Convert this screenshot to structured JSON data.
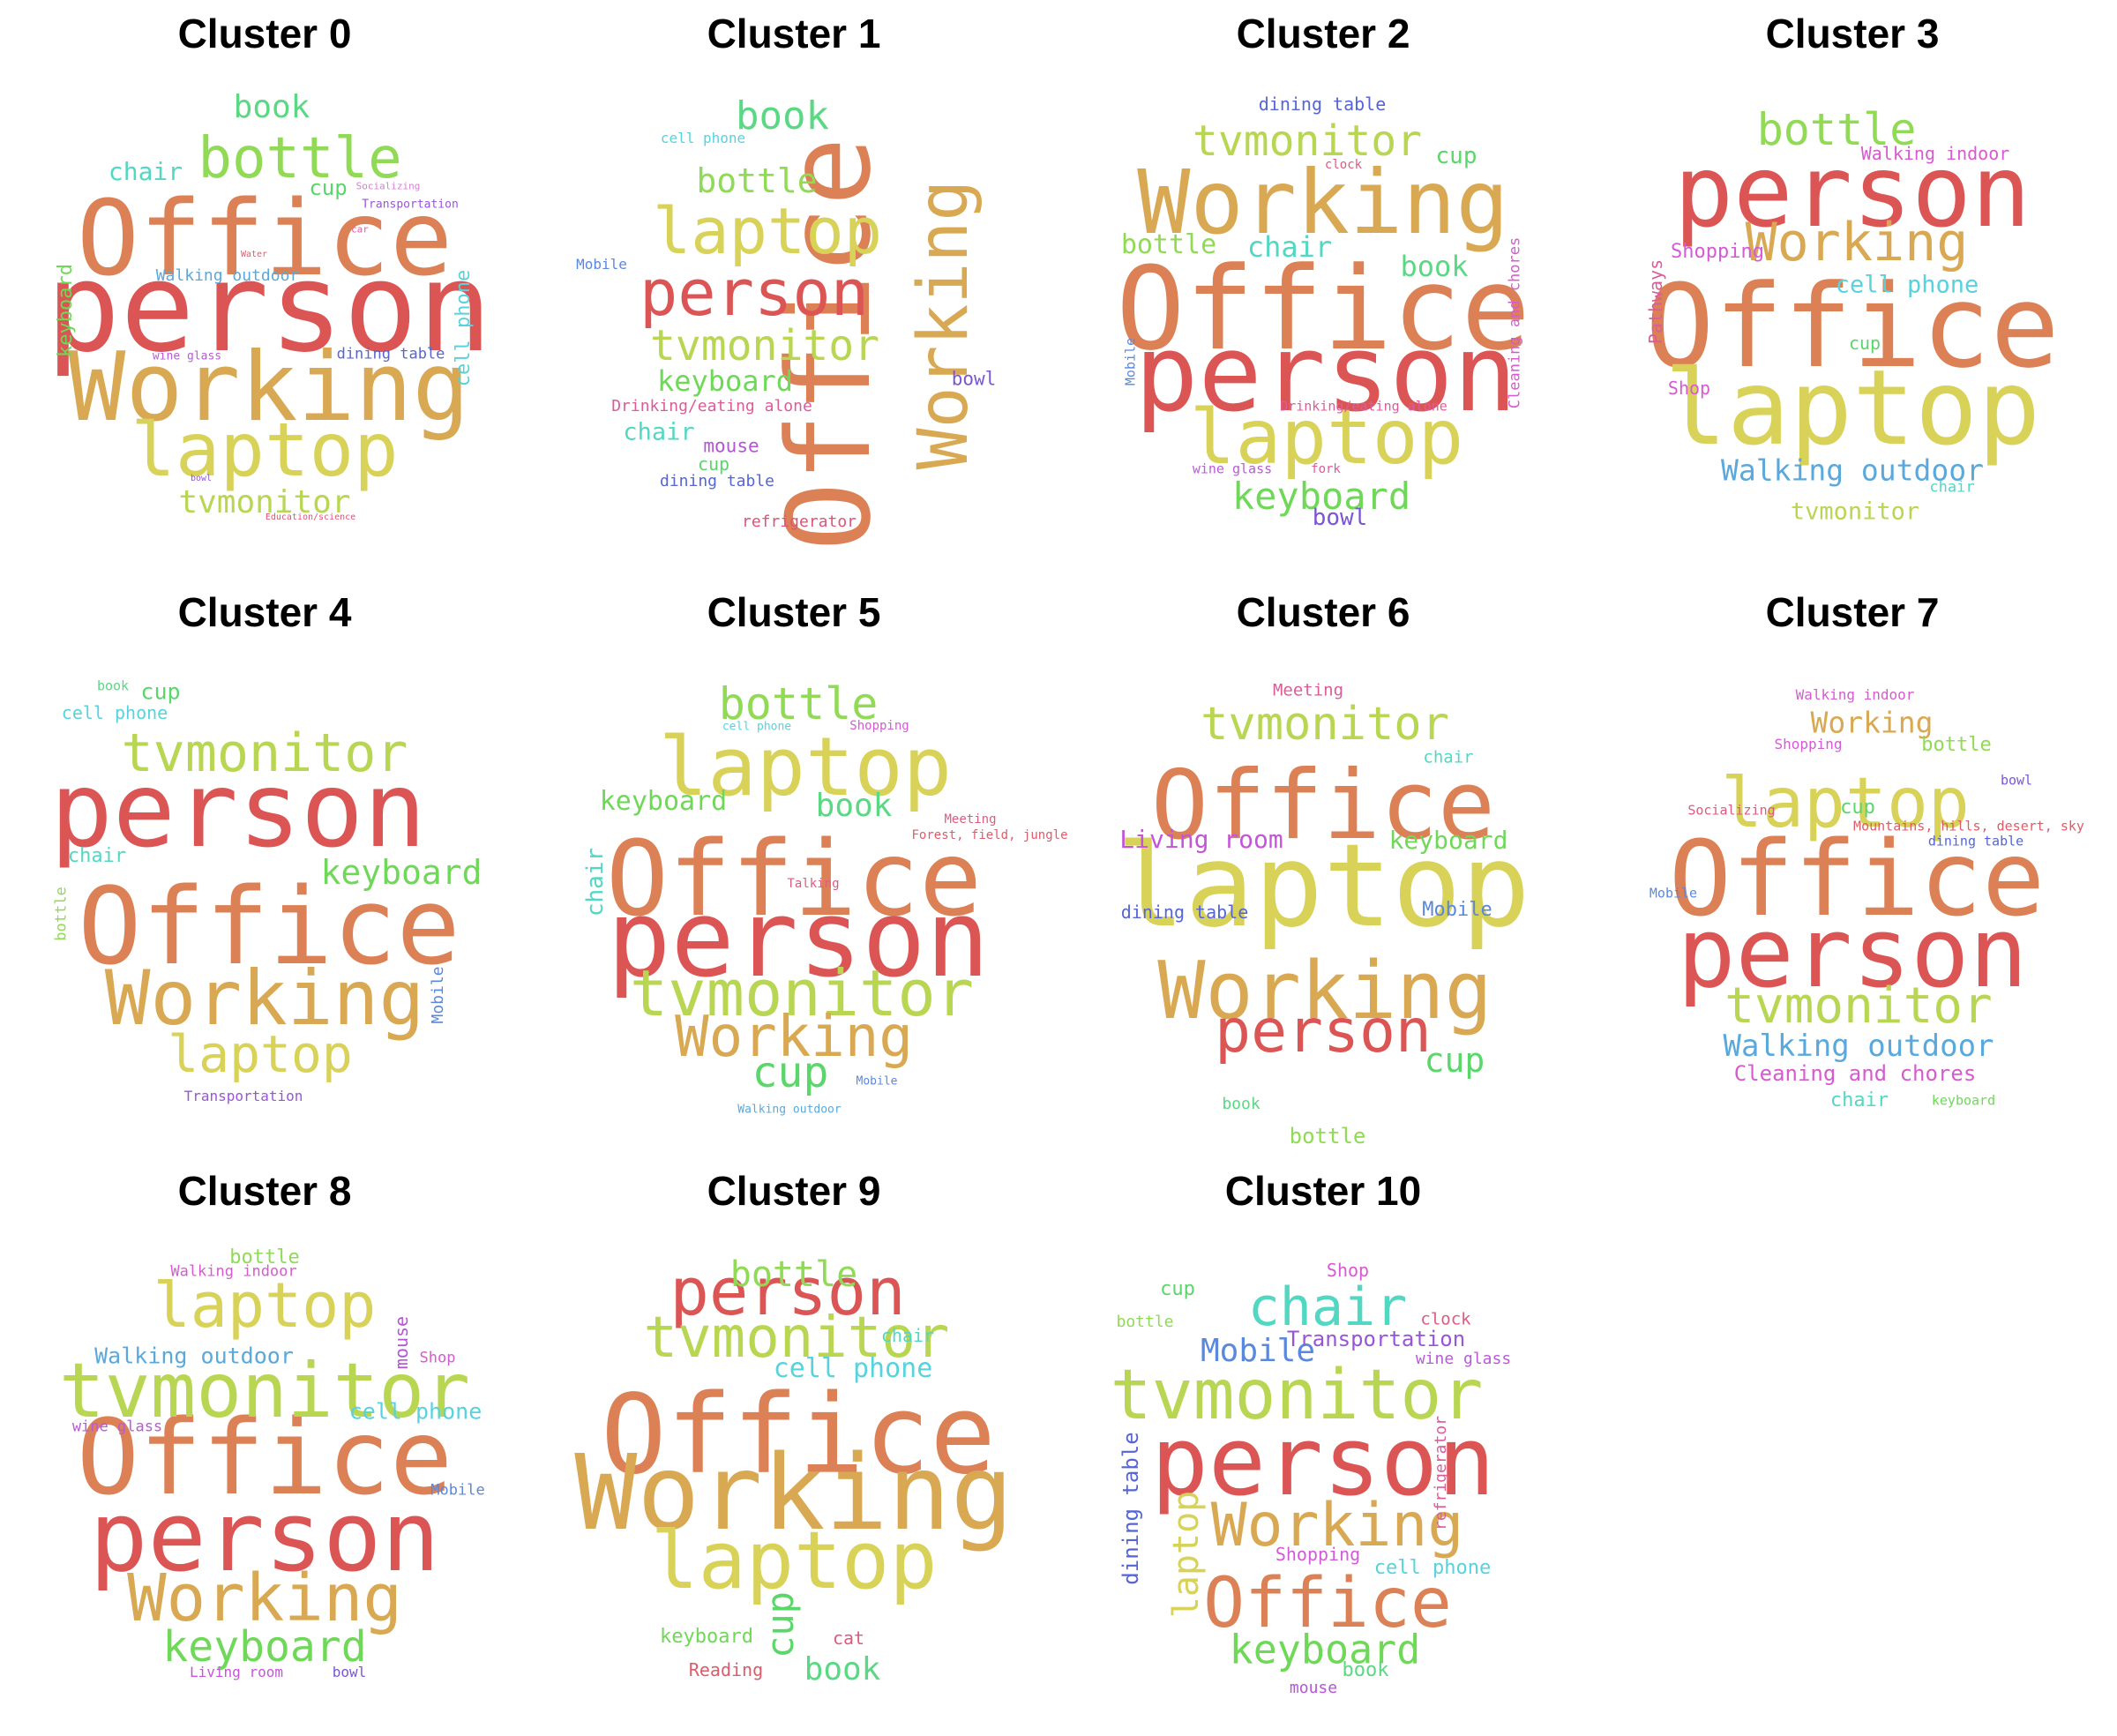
{
  "clusters": [
    {
      "title": "Cluster 0",
      "words": [
        {
          "text": "Office",
          "color": "#dc8055"
        },
        {
          "text": "person",
          "color": "#dc5555"
        },
        {
          "text": "Working",
          "color": "#d9a852"
        },
        {
          "text": "laptop",
          "color": "#d8d258"
        },
        {
          "text": "bottle",
          "color": "#90da55"
        },
        {
          "text": "book",
          "color": "#5ad883"
        },
        {
          "text": "chair",
          "color": "#52d7c3"
        },
        {
          "text": "cup",
          "color": "#5ad66a"
        },
        {
          "text": "tvmonitor",
          "color": "#b8d652"
        },
        {
          "text": "keyboard",
          "color": "#6fd858"
        },
        {
          "text": "cell phone",
          "color": "#58d2dd"
        },
        {
          "text": "Walking outdoor",
          "color": "#5aa8dc"
        },
        {
          "text": "dining table",
          "color": "#5565d8"
        },
        {
          "text": "Transportation",
          "color": "#9855d8"
        },
        {
          "text": "Socializing",
          "color": "#d87cd8"
        },
        {
          "text": "car",
          "color": "#dc5ca2"
        },
        {
          "text": "Water",
          "color": "#d86070"
        },
        {
          "text": "wine glass",
          "color": "#b95ad8"
        },
        {
          "text": "bowl",
          "color": "#9455d8"
        },
        {
          "text": "Education/science",
          "color": "#dc5577"
        }
      ]
    },
    {
      "title": "Cluster 1",
      "words": [
        {
          "text": "Office",
          "color": "#dc8055"
        },
        {
          "text": "Working",
          "color": "#d9a852"
        },
        {
          "text": "person",
          "color": "#dc5555"
        },
        {
          "text": "laptop",
          "color": "#d8d258"
        },
        {
          "text": "tvmonitor",
          "color": "#b8d652"
        },
        {
          "text": "book",
          "color": "#5ad883"
        },
        {
          "text": "bottle",
          "color": "#90da55"
        },
        {
          "text": "keyboard",
          "color": "#6fd858"
        },
        {
          "text": "chair",
          "color": "#52d7c3"
        },
        {
          "text": "cell phone",
          "color": "#58d2dd"
        },
        {
          "text": "Mobile",
          "color": "#5a88dc"
        },
        {
          "text": "Drinking/eating alone",
          "color": "#dc5c9a"
        },
        {
          "text": "mouse",
          "color": "#b455d8"
        },
        {
          "text": "cup",
          "color": "#5ad66a"
        },
        {
          "text": "dining table",
          "color": "#5565d8"
        },
        {
          "text": "bowl",
          "color": "#7a55d8"
        },
        {
          "text": "refrigerator",
          "color": "#dc5577"
        }
      ]
    },
    {
      "title": "Cluster 2",
      "words": [
        {
          "text": "Office",
          "color": "#dc8055"
        },
        {
          "text": "person",
          "color": "#dc5555"
        },
        {
          "text": "Working",
          "color": "#d9a852"
        },
        {
          "text": "laptop",
          "color": "#d8d258"
        },
        {
          "text": "tvmonitor",
          "color": "#b8d652"
        },
        {
          "text": "keyboard",
          "color": "#6fd858"
        },
        {
          "text": "dining table",
          "color": "#5565d8"
        },
        {
          "text": "cup",
          "color": "#5ad66a"
        },
        {
          "text": "clock",
          "color": "#dc5c7f"
        },
        {
          "text": "bottle",
          "color": "#90da55"
        },
        {
          "text": "chair",
          "color": "#52d7c3"
        },
        {
          "text": "book",
          "color": "#5ad883"
        },
        {
          "text": "Cleaning and chores",
          "color": "#d85ad0"
        },
        {
          "text": "Mobile",
          "color": "#5a88dc"
        },
        {
          "text": "Drinking/eating alone",
          "color": "#dc5c9a"
        },
        {
          "text": "wine glass",
          "color": "#b95ad8"
        },
        {
          "text": "fork",
          "color": "#dc5c9a"
        },
        {
          "text": "bowl",
          "color": "#7a55d8"
        }
      ]
    },
    {
      "title": "Cluster 3",
      "words": [
        {
          "text": "Office",
          "color": "#dc8055"
        },
        {
          "text": "person",
          "color": "#dc5555"
        },
        {
          "text": "laptop",
          "color": "#d8d258"
        },
        {
          "text": "Working",
          "color": "#d9a852"
        },
        {
          "text": "bottle",
          "color": "#90da55"
        },
        {
          "text": "Walking indoor",
          "color": "#d85ad0"
        },
        {
          "text": "Shopping",
          "color": "#d55ad8"
        },
        {
          "text": "cell phone",
          "color": "#58d2dd"
        },
        {
          "text": "Pathways",
          "color": "#dc5c9a"
        },
        {
          "text": "cup",
          "color": "#5ad66a"
        },
        {
          "text": "Shop",
          "color": "#d85ad0"
        },
        {
          "text": "Walking outdoor",
          "color": "#5aa8dc"
        },
        {
          "text": "chair",
          "color": "#52d7c3"
        },
        {
          "text": "tvmonitor",
          "color": "#b8d652"
        }
      ]
    },
    {
      "title": "Cluster 4",
      "words": [
        {
          "text": "person",
          "color": "#dc5555"
        },
        {
          "text": "Office",
          "color": "#dc8055"
        },
        {
          "text": "Working",
          "color": "#d9a852"
        },
        {
          "text": "tvmonitor",
          "color": "#b8d652"
        },
        {
          "text": "laptop",
          "color": "#d8d258"
        },
        {
          "text": "keyboard",
          "color": "#6fd858"
        },
        {
          "text": "book",
          "color": "#5ad883"
        },
        {
          "text": "cup",
          "color": "#5ad66a"
        },
        {
          "text": "cell phone",
          "color": "#58d2dd"
        },
        {
          "text": "chair",
          "color": "#52d7c3"
        },
        {
          "text": "bottle",
          "color": "#90da55"
        },
        {
          "text": "Mobile",
          "color": "#5a88dc"
        },
        {
          "text": "Transportation",
          "color": "#9855d8"
        }
      ]
    },
    {
      "title": "Cluster 5",
      "words": [
        {
          "text": "Office",
          "color": "#dc8055"
        },
        {
          "text": "person",
          "color": "#dc5555"
        },
        {
          "text": "laptop",
          "color": "#d8d258"
        },
        {
          "text": "tvmonitor",
          "color": "#b8d652"
        },
        {
          "text": "Working",
          "color": "#d9a852"
        },
        {
          "text": "bottle",
          "color": "#90da55"
        },
        {
          "text": "book",
          "color": "#5ad883"
        },
        {
          "text": "keyboard",
          "color": "#6fd858"
        },
        {
          "text": "cup",
          "color": "#5ad66a"
        },
        {
          "text": "chair",
          "color": "#52d7c3"
        },
        {
          "text": "cell phone",
          "color": "#58d2dd"
        },
        {
          "text": "Shopping",
          "color": "#d55ad8"
        },
        {
          "text": "Meeting",
          "color": "#dc5c7f"
        },
        {
          "text": "Forest, field, jungle",
          "color": "#dc5c6a"
        },
        {
          "text": "Talking",
          "color": "#dc5c7f"
        },
        {
          "text": "Mobile",
          "color": "#5a88dc"
        },
        {
          "text": "Walking outdoor",
          "color": "#5aa8dc"
        }
      ]
    },
    {
      "title": "Cluster 6",
      "words": [
        {
          "text": "laptop",
          "color": "#d8d258"
        },
        {
          "text": "Office",
          "color": "#dc8055"
        },
        {
          "text": "Working",
          "color": "#d9a852"
        },
        {
          "text": "person",
          "color": "#dc5555"
        },
        {
          "text": "tvmonitor",
          "color": "#b8d652"
        },
        {
          "text": "Living room",
          "color": "#c455d8"
        },
        {
          "text": "keyboard",
          "color": "#6fd858"
        },
        {
          "text": "Meeting",
          "color": "#dc5c9a"
        },
        {
          "text": "chair",
          "color": "#52d7c3"
        },
        {
          "text": "dining table",
          "color": "#5565d8"
        },
        {
          "text": "Mobile",
          "color": "#5a88dc"
        },
        {
          "text": "cup",
          "color": "#5ad66a"
        },
        {
          "text": "book",
          "color": "#5ad883"
        },
        {
          "text": "bottle",
          "color": "#90da55"
        }
      ]
    },
    {
      "title": "Cluster 7",
      "words": [
        {
          "text": "Office",
          "color": "#dc8055"
        },
        {
          "text": "person",
          "color": "#dc5555"
        },
        {
          "text": "laptop",
          "color": "#d8d258"
        },
        {
          "text": "tvmonitor",
          "color": "#b8d652"
        },
        {
          "text": "Walking outdoor",
          "color": "#5aa8dc"
        },
        {
          "text": "Cleaning and chores",
          "color": "#d85ad0"
        },
        {
          "text": "Working",
          "color": "#d9a852"
        },
        {
          "text": "Walking indoor",
          "color": "#d85ad0"
        },
        {
          "text": "Shopping",
          "color": "#d55ad8"
        },
        {
          "text": "bottle",
          "color": "#90da55"
        },
        {
          "text": "bowl",
          "color": "#7a55d8"
        },
        {
          "text": "Socializing",
          "color": "#dc5c7f"
        },
        {
          "text": "cup",
          "color": "#5ad66a"
        },
        {
          "text": "Mountains, hills, desert, sky",
          "color": "#dc5c6a"
        },
        {
          "text": "dining table",
          "color": "#5565d8"
        },
        {
          "text": "Mobile",
          "color": "#5a88dc"
        },
        {
          "text": "chair",
          "color": "#52d7c3"
        },
        {
          "text": "keyboard",
          "color": "#6fd858"
        }
      ]
    },
    {
      "title": "Cluster 8",
      "words": [
        {
          "text": "Office",
          "color": "#dc8055"
        },
        {
          "text": "person",
          "color": "#dc5555"
        },
        {
          "text": "tvmonitor",
          "color": "#b8d652"
        },
        {
          "text": "laptop",
          "color": "#d8d258"
        },
        {
          "text": "Working",
          "color": "#d9a852"
        },
        {
          "text": "keyboard",
          "color": "#6fd858"
        },
        {
          "text": "bottle",
          "color": "#90da55"
        },
        {
          "text": "Walking indoor",
          "color": "#d85ad0"
        },
        {
          "text": "Walking outdoor",
          "color": "#5aa8dc"
        },
        {
          "text": "mouse",
          "color": "#b455d8"
        },
        {
          "text": "Shop",
          "color": "#d85ad0"
        },
        {
          "text": "wine glass",
          "color": "#b95ad8"
        },
        {
          "text": "cell phone",
          "color": "#58d2dd"
        },
        {
          "text": "Mobile",
          "color": "#5a88dc"
        },
        {
          "text": "Living room",
          "color": "#c455d8"
        },
        {
          "text": "bowl",
          "color": "#7a55d8"
        }
      ]
    },
    {
      "title": "Cluster 9",
      "words": [
        {
          "text": "Office",
          "color": "#dc8055"
        },
        {
          "text": "Working",
          "color": "#d9a852"
        },
        {
          "text": "laptop",
          "color": "#d8d258"
        },
        {
          "text": "person",
          "color": "#dc5555"
        },
        {
          "text": "tvmonitor",
          "color": "#b8d652"
        },
        {
          "text": "bottle",
          "color": "#90da55"
        },
        {
          "text": "cell phone",
          "color": "#58d2dd"
        },
        {
          "text": "chair",
          "color": "#52d7c3"
        },
        {
          "text": "cup",
          "color": "#5ad66a"
        },
        {
          "text": "book",
          "color": "#5ad883"
        },
        {
          "text": "keyboard",
          "color": "#6fd858"
        },
        {
          "text": "Reading",
          "color": "#dc5c6a"
        },
        {
          "text": "cat",
          "color": "#dc5c7f"
        }
      ]
    },
    {
      "title": "Cluster 10",
      "words": [
        {
          "text": "person",
          "color": "#dc5555"
        },
        {
          "text": "tvmonitor",
          "color": "#b8d652"
        },
        {
          "text": "Office",
          "color": "#dc8055"
        },
        {
          "text": "Working",
          "color": "#d9a852"
        },
        {
          "text": "chair",
          "color": "#52d7c3"
        },
        {
          "text": "keyboard",
          "color": "#6fd858"
        },
        {
          "text": "Mobile",
          "color": "#5a88dc"
        },
        {
          "text": "Transportation",
          "color": "#9855d8"
        },
        {
          "text": "cup",
          "color": "#5ad66a"
        },
        {
          "text": "Shop",
          "color": "#d85ad0"
        },
        {
          "text": "bottle",
          "color": "#90da55"
        },
        {
          "text": "clock",
          "color": "#dc5c7f"
        },
        {
          "text": "wine glass",
          "color": "#b95ad8"
        },
        {
          "text": "dining table",
          "color": "#5565d8"
        },
        {
          "text": "refrigerator",
          "color": "#dc5c9a"
        },
        {
          "text": "laptop",
          "color": "#d8d258"
        },
        {
          "text": "Shopping",
          "color": "#d55ad8"
        },
        {
          "text": "cell phone",
          "color": "#58d2dd"
        },
        {
          "text": "mouse",
          "color": "#b455d8"
        },
        {
          "text": "book",
          "color": "#5ad883"
        }
      ]
    }
  ]
}
